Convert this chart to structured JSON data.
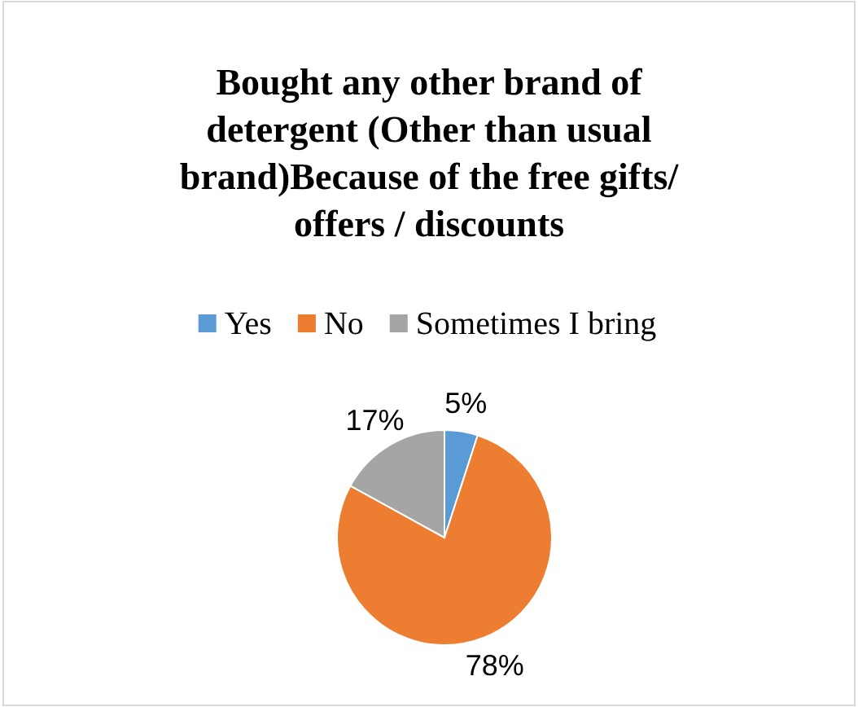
{
  "chart_data": {
    "type": "pie",
    "title": "Bought any other brand of detergent (Other than usual brand)Because of the free gifts/ offers / discounts",
    "categories": [
      "Yes",
      "No",
      "Sometimes I bring"
    ],
    "values": [
      5,
      78,
      17
    ],
    "colors": [
      "#5b9bd5",
      "#ed7d31",
      "#a5a5a5"
    ],
    "value_labels": [
      "5%",
      "78%",
      "17%"
    ],
    "legend": "top"
  }
}
